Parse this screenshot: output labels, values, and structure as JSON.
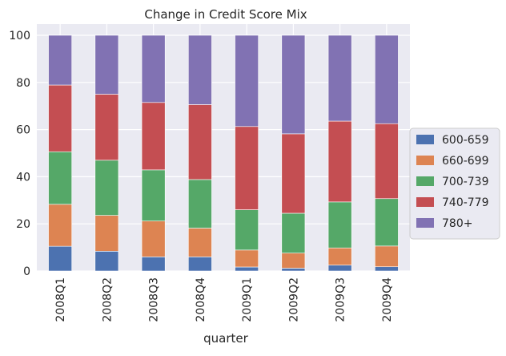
{
  "chart_data": {
    "type": "bar",
    "stacked": true,
    "title": "Change in Credit Score Mix",
    "xlabel": "quarter",
    "ylabel": "",
    "ylim": [
      0,
      100
    ],
    "yticks": [
      0,
      20,
      40,
      60,
      80,
      100
    ],
    "grid": true,
    "legend_position": "right",
    "categories": [
      "2008Q1",
      "2008Q2",
      "2008Q3",
      "2008Q4",
      "2009Q1",
      "2009Q2",
      "2009Q3",
      "2009Q4"
    ],
    "series": [
      {
        "name": "600-659",
        "color": "#4c72b0",
        "values": [
          10.5,
          8.4,
          6.0,
          6.0,
          1.7,
          1.2,
          2.5,
          1.8
        ]
      },
      {
        "name": "660-699",
        "color": "#dd8452",
        "values": [
          17.8,
          15.2,
          15.2,
          12.2,
          7.2,
          6.4,
          7.3,
          8.8
        ]
      },
      {
        "name": "700-739",
        "color": "#55a868",
        "values": [
          22.3,
          23.4,
          21.7,
          20.6,
          17.1,
          16.9,
          19.5,
          20.1
        ]
      },
      {
        "name": "740-779",
        "color": "#c44e52",
        "values": [
          28.3,
          28.0,
          28.6,
          31.8,
          35.3,
          33.7,
          34.3,
          31.8
        ]
      },
      {
        "name": "780+",
        "color": "#8172b3",
        "values": [
          21.1,
          25.0,
          28.5,
          29.4,
          38.7,
          41.8,
          36.4,
          37.5
        ]
      }
    ]
  }
}
